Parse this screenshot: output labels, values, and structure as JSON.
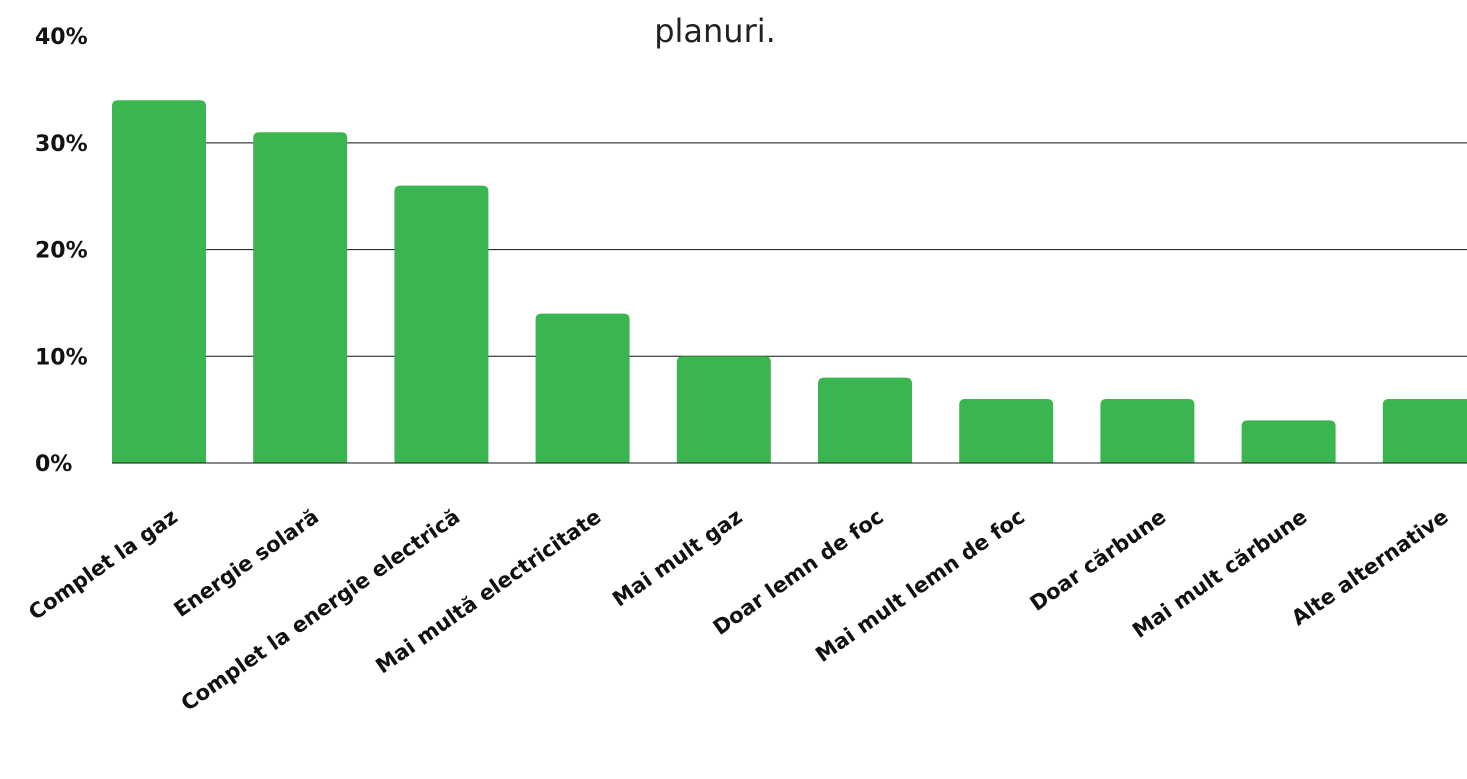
{
  "chart_data": {
    "type": "bar",
    "title": "planuri.",
    "xlabel": "",
    "ylabel": "",
    "categories": [
      "Complet la gaz",
      "Energie solară",
      "Complet la energie electrică",
      "Mai multă electricitate",
      "Mai mult gaz",
      "Doar lemn de foc",
      "Mai mult lemn de foc",
      "Doar cărbune",
      "Mai mult cărbune",
      "Alte alternative"
    ],
    "values": [
      34,
      31,
      26,
      14,
      10,
      8,
      6,
      6,
      4,
      6
    ],
    "value_unit": "%",
    "ylim": [
      0,
      40
    ],
    "yticks": [
      "0%",
      "10%",
      "20%",
      "30%",
      "40%"
    ],
    "grid": true,
    "legend": "none",
    "colors": {
      "bar": "#3bb54f",
      "grid": "#111111",
      "text": "#111111"
    }
  }
}
